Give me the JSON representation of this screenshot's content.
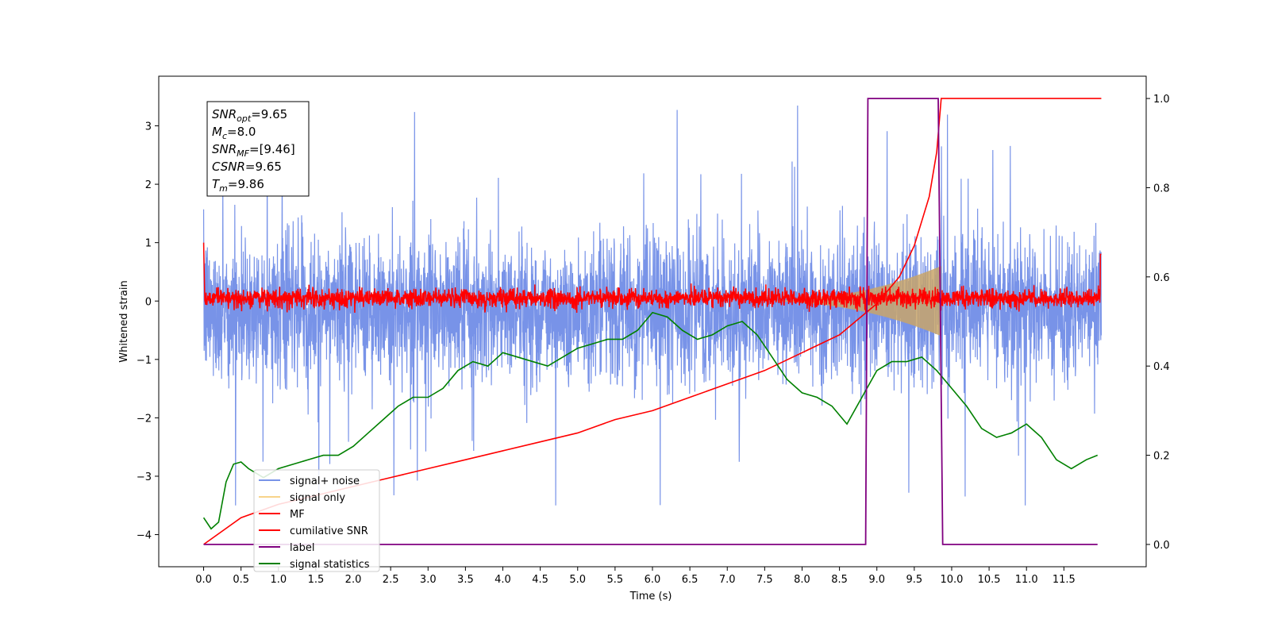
{
  "chart_data": {
    "type": "line",
    "xlabel": "Time (s)",
    "ylabel": "Whitened strain",
    "xlim": [
      -0.6,
      12.6
    ],
    "ylim": [
      -4.55,
      3.85
    ],
    "ylim_right": [
      -0.05,
      1.05
    ],
    "x_ticks": [
      "0.0",
      "0.5",
      "1.0",
      "1.5",
      "2.0",
      "2.5",
      "3.0",
      "3.5",
      "4.0",
      "4.5",
      "5.0",
      "5.5",
      "6.0",
      "6.5",
      "7.0",
      "7.5",
      "8.0",
      "8.5",
      "9.0",
      "9.5",
      "10.0",
      "10.5",
      "11.0",
      "11.5"
    ],
    "y_ticks": [
      "3",
      "2",
      "1",
      "0",
      "−1",
      "−2",
      "−3",
      "−4"
    ],
    "y_ticks_right": [
      "1.0",
      "0.8",
      "0.6",
      "0.4",
      "0.2",
      "0.0"
    ],
    "annotation": [
      {
        "base": "SNR",
        "sub": "opt",
        "value": "=9.65"
      },
      {
        "base": "M",
        "sub": "c",
        "value": "=8.0"
      },
      {
        "base": "SNR",
        "sub": "MF",
        "value": "=[9.46]"
      },
      {
        "base": "CSNR",
        "sub": "",
        "value": "=9.65"
      },
      {
        "base": "T",
        "sub": "m",
        "value": "=9.86"
      }
    ],
    "legend": [
      {
        "label": "signal+ noise",
        "color": "#7893e8"
      },
      {
        "label": "signal only",
        "color": "#f8d48a"
      },
      {
        "label": "MF",
        "color": "#ff0000"
      },
      {
        "label": "cumilative SNR",
        "color": "#ff0000"
      },
      {
        "label": "label",
        "color": "#800080"
      },
      {
        "label": "signal statistics",
        "color": "#008000"
      }
    ],
    "series": [
      {
        "name": "signal+ noise",
        "axis": "left",
        "color": "#7893e8",
        "x_range": [
          0,
          12
        ],
        "center": -0.15,
        "band": [
          -1.6,
          1.7
        ],
        "spike_range": [
          -3.5,
          3.5
        ]
      },
      {
        "name": "signal only",
        "axis": "left",
        "color": "#c8a46a",
        "chirp_start": 7.5,
        "chirp_end": 9.86,
        "peak_amplitude": 0.55
      },
      {
        "name": "MF",
        "axis": "left",
        "color": "#ff0000",
        "x_range": [
          0,
          12
        ],
        "center": 0.05,
        "band": [
          -0.2,
          0.3
        ]
      },
      {
        "name": "cumilative SNR",
        "axis": "right",
        "x": [
          0,
          0.5,
          1,
          1.5,
          2,
          2.5,
          3,
          3.5,
          4,
          4.5,
          5,
          5.5,
          6,
          6.5,
          7,
          7.5,
          8,
          8.5,
          9,
          9.3,
          9.5,
          9.7,
          9.8,
          9.86,
          12
        ],
        "y": [
          0,
          0.06,
          0.09,
          0.11,
          0.13,
          0.15,
          0.17,
          0.19,
          0.21,
          0.23,
          0.25,
          0.28,
          0.3,
          0.33,
          0.36,
          0.39,
          0.43,
          0.47,
          0.54,
          0.6,
          0.67,
          0.78,
          0.88,
          1.0,
          1.0
        ]
      },
      {
        "name": "label",
        "axis": "right",
        "x": [
          0,
          8.85,
          8.88,
          9.82,
          9.88,
          11.95
        ],
        "y": [
          0,
          0,
          1,
          1,
          0,
          0
        ]
      },
      {
        "name": "signal statistics",
        "axis": "right",
        "x": [
          0,
          0.1,
          0.2,
          0.3,
          0.4,
          0.5,
          0.6,
          0.7,
          0.8,
          1.0,
          1.2,
          1.4,
          1.6,
          1.8,
          2.0,
          2.2,
          2.4,
          2.6,
          2.8,
          3.0,
          3.2,
          3.4,
          3.6,
          3.8,
          4.0,
          4.2,
          4.4,
          4.6,
          4.8,
          5.0,
          5.2,
          5.4,
          5.6,
          5.8,
          6.0,
          6.2,
          6.4,
          6.6,
          6.8,
          7.0,
          7.2,
          7.4,
          7.6,
          7.8,
          8.0,
          8.2,
          8.4,
          8.6,
          8.8,
          9.0,
          9.2,
          9.4,
          9.6,
          9.8,
          10.0,
          10.2,
          10.4,
          10.6,
          10.8,
          11.0,
          11.2,
          11.4,
          11.6,
          11.8,
          11.95
        ],
        "y": [
          0.06,
          0.035,
          0.05,
          0.14,
          0.18,
          0.185,
          0.17,
          0.16,
          0.15,
          0.17,
          0.18,
          0.19,
          0.2,
          0.2,
          0.22,
          0.25,
          0.28,
          0.31,
          0.33,
          0.33,
          0.35,
          0.39,
          0.41,
          0.4,
          0.43,
          0.42,
          0.41,
          0.4,
          0.42,
          0.44,
          0.45,
          0.46,
          0.46,
          0.48,
          0.52,
          0.51,
          0.48,
          0.46,
          0.47,
          0.49,
          0.5,
          0.47,
          0.42,
          0.37,
          0.34,
          0.33,
          0.31,
          0.27,
          0.33,
          0.39,
          0.41,
          0.41,
          0.42,
          0.39,
          0.35,
          0.31,
          0.26,
          0.24,
          0.25,
          0.27,
          0.24,
          0.19,
          0.17,
          0.19,
          0.2
        ]
      }
    ]
  }
}
